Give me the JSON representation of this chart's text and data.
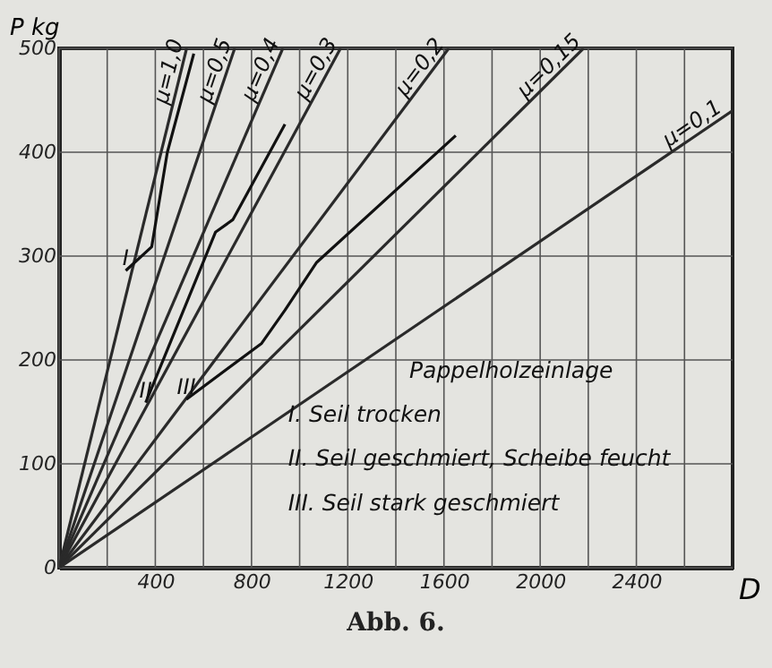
{
  "chart_data": {
    "type": "line",
    "title": "Abb. 6.",
    "xlabel": "D",
    "ylabel": "P kg",
    "xlim": [
      0,
      2800
    ],
    "ylim": [
      0,
      500
    ],
    "xticks": [
      {
        "value": 0,
        "label": null
      },
      {
        "value": 200,
        "label": null
      },
      400,
      {
        "value": 600,
        "label": null
      },
      800,
      {
        "value": 1000,
        "label": null
      },
      1200,
      {
        "value": 1400,
        "label": null
      },
      1600,
      {
        "value": 1800,
        "label": null
      },
      2000,
      {
        "value": 2200,
        "label": null
      },
      2400,
      {
        "value": 2600,
        "label": null
      }
    ],
    "yticks": [
      0,
      100,
      200,
      300,
      400,
      500
    ],
    "grid": true,
    "marker": "none",
    "line_style": "solid",
    "annotations": [
      "Pappelholzeinlage",
      "I. Seil trocken",
      "II. Seil geschmiert, Scheibe feucht",
      "III. Seil stark geschmiert"
    ],
    "series": [
      {
        "name": "μ=1,0",
        "color": "#2a2a2a",
        "x": [
          0,
          530
        ],
        "values": [
          0,
          500
        ]
      },
      {
        "name": "μ=0,5",
        "color": "#2a2a2a",
        "x": [
          0,
          730
        ],
        "values": [
          0,
          500
        ]
      },
      {
        "name": "μ=0,4",
        "color": "#2a2a2a",
        "x": [
          0,
          930
        ],
        "values": [
          0,
          500
        ]
      },
      {
        "name": "μ=0,3",
        "color": "#2a2a2a",
        "x": [
          0,
          1170
        ],
        "values": [
          0,
          500
        ]
      },
      {
        "name": "μ=0,2",
        "color": "#2a2a2a",
        "x": [
          0,
          1620
        ],
        "values": [
          0,
          500
        ]
      },
      {
        "name": "μ=0,15",
        "color": "#2a2a2a",
        "x": [
          0,
          2180
        ],
        "values": [
          0,
          500
        ]
      },
      {
        "name": "μ=0,1",
        "color": "#2a2a2a",
        "x": [
          0,
          2800
        ],
        "values": [
          0,
          440
        ]
      },
      {
        "name": "I",
        "color": "#111111",
        "x": [
          277,
          385,
          450,
          560
        ],
        "values": [
          286,
          309,
          400,
          495
        ]
      },
      {
        "name": "II",
        "color": "#111111",
        "x": [
          360,
          650,
          722,
          939
        ],
        "values": [
          159,
          323,
          335,
          427
        ]
      },
      {
        "name": "III",
        "color": "#111111",
        "x": [
          529,
          842,
          939,
          1071,
          1649
        ],
        "values": [
          162,
          216,
          248,
          294,
          416
        ]
      }
    ]
  }
}
